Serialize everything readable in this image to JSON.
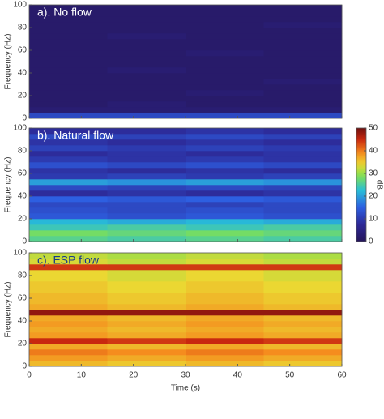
{
  "chart_data": [
    {
      "type": "heatmap",
      "title": "a). No flow",
      "title_color": "#ffffff",
      "ylabel": "Frequency (Hz)",
      "xlim": [
        0,
        60
      ],
      "xticks": [
        0,
        10,
        20,
        30,
        40,
        50,
        60
      ],
      "ylim": [
        0,
        100
      ],
      "yticks": [
        0,
        20,
        40,
        60,
        80,
        100
      ],
      "xbins": [
        0,
        15,
        30,
        45,
        60
      ],
      "ybins": [
        0,
        5,
        10,
        15,
        20,
        25,
        30,
        35,
        40,
        45,
        50,
        55,
        60,
        65,
        70,
        75,
        80,
        85,
        90,
        95,
        100
      ],
      "clim": [
        0,
        50
      ],
      "values": [
        [
          12,
          12,
          12,
          12
        ],
        [
          3,
          3,
          3,
          3
        ],
        [
          2,
          3,
          2,
          2
        ],
        [
          2,
          2,
          2,
          2
        ],
        [
          2,
          2,
          3,
          2
        ],
        [
          2,
          2,
          2,
          2
        ],
        [
          2,
          2,
          2,
          3
        ],
        [
          2,
          2,
          2,
          2
        ],
        [
          2,
          3,
          2,
          2
        ],
        [
          2,
          2,
          2,
          2
        ],
        [
          2,
          2,
          2,
          2
        ],
        [
          2,
          2,
          3,
          2
        ],
        [
          2,
          2,
          2,
          2
        ],
        [
          2,
          2,
          2,
          2
        ],
        [
          2,
          3,
          2,
          2
        ],
        [
          2,
          2,
          2,
          2
        ],
        [
          2,
          2,
          2,
          3
        ],
        [
          2,
          2,
          2,
          2
        ],
        [
          2,
          2,
          2,
          2
        ],
        [
          2,
          2,
          2,
          2
        ]
      ]
    },
    {
      "type": "heatmap",
      "title": "b). Natural flow",
      "title_color": "#ffffff",
      "ylabel": "Frequency (Hz)",
      "xlim": [
        0,
        60
      ],
      "xticks": [
        0,
        10,
        20,
        30,
        40,
        50,
        60
      ],
      "ylim": [
        0,
        100
      ],
      "yticks": [
        0,
        20,
        40,
        60,
        80,
        100
      ],
      "xbins": [
        0,
        15,
        30,
        45,
        60
      ],
      "ybins": [
        0,
        5,
        10,
        15,
        20,
        25,
        30,
        35,
        40,
        45,
        50,
        55,
        60,
        65,
        70,
        75,
        80,
        85,
        90,
        95,
        100
      ],
      "clim": [
        0,
        50
      ],
      "values": [
        [
          26,
          25,
          26,
          25
        ],
        [
          28,
          27,
          28,
          27
        ],
        [
          24,
          25,
          24,
          25
        ],
        [
          22,
          21,
          22,
          21
        ],
        [
          14,
          13,
          14,
          13
        ],
        [
          13,
          12,
          13,
          12
        ],
        [
          12,
          12,
          11,
          12
        ],
        [
          15,
          14,
          15,
          14
        ],
        [
          8,
          9,
          8,
          9
        ],
        [
          12,
          11,
          12,
          11
        ],
        [
          20,
          19,
          20,
          19
        ],
        [
          10,
          11,
          10,
          11
        ],
        [
          9,
          8,
          9,
          8
        ],
        [
          13,
          12,
          13,
          12
        ],
        [
          10,
          9,
          10,
          9
        ],
        [
          8,
          9,
          8,
          9
        ],
        [
          11,
          10,
          11,
          10
        ],
        [
          9,
          8,
          9,
          8
        ],
        [
          12,
          11,
          12,
          11
        ],
        [
          8,
          8,
          9,
          8
        ]
      ],
      "colorbar": {
        "label": "dB",
        "ticks": [
          0,
          10,
          20,
          30,
          40,
          50
        ]
      }
    },
    {
      "type": "heatmap",
      "title": "c). ESP flow",
      "title_color": "#1a3a8a",
      "ylabel": "Frequency (Hz)",
      "xlabel": "Time (s)",
      "xlim": [
        0,
        60
      ],
      "xticks": [
        0,
        10,
        20,
        30,
        40,
        50,
        60
      ],
      "ylim": [
        0,
        100
      ],
      "yticks": [
        0,
        20,
        40,
        60,
        80,
        100
      ],
      "xbins": [
        0,
        15,
        30,
        45,
        60
      ],
      "ybins": [
        0,
        5,
        10,
        15,
        20,
        25,
        30,
        35,
        40,
        45,
        50,
        55,
        60,
        65,
        70,
        75,
        80,
        85,
        90,
        95,
        100
      ],
      "clim": [
        0,
        50
      ],
      "values": [
        [
          36,
          35,
          36,
          35
        ],
        [
          38,
          37,
          38,
          37
        ],
        [
          40,
          39,
          40,
          39
        ],
        [
          37,
          36,
          37,
          36
        ],
        [
          45,
          44,
          45,
          44
        ],
        [
          38,
          37,
          38,
          37
        ],
        [
          37,
          36,
          37,
          36
        ],
        [
          38,
          37,
          38,
          37
        ],
        [
          37,
          36,
          37,
          36
        ],
        [
          48,
          48,
          48,
          48
        ],
        [
          37,
          36,
          37,
          36
        ],
        [
          36,
          35,
          36,
          35
        ],
        [
          36,
          35,
          36,
          35
        ],
        [
          35,
          34,
          35,
          34
        ],
        [
          35,
          34,
          35,
          34
        ],
        [
          34,
          33,
          34,
          33
        ],
        [
          34,
          33,
          34,
          33
        ],
        [
          44,
          44,
          44,
          44
        ],
        [
          33,
          32,
          33,
          32
        ],
        [
          32,
          31,
          32,
          31
        ]
      ]
    }
  ]
}
